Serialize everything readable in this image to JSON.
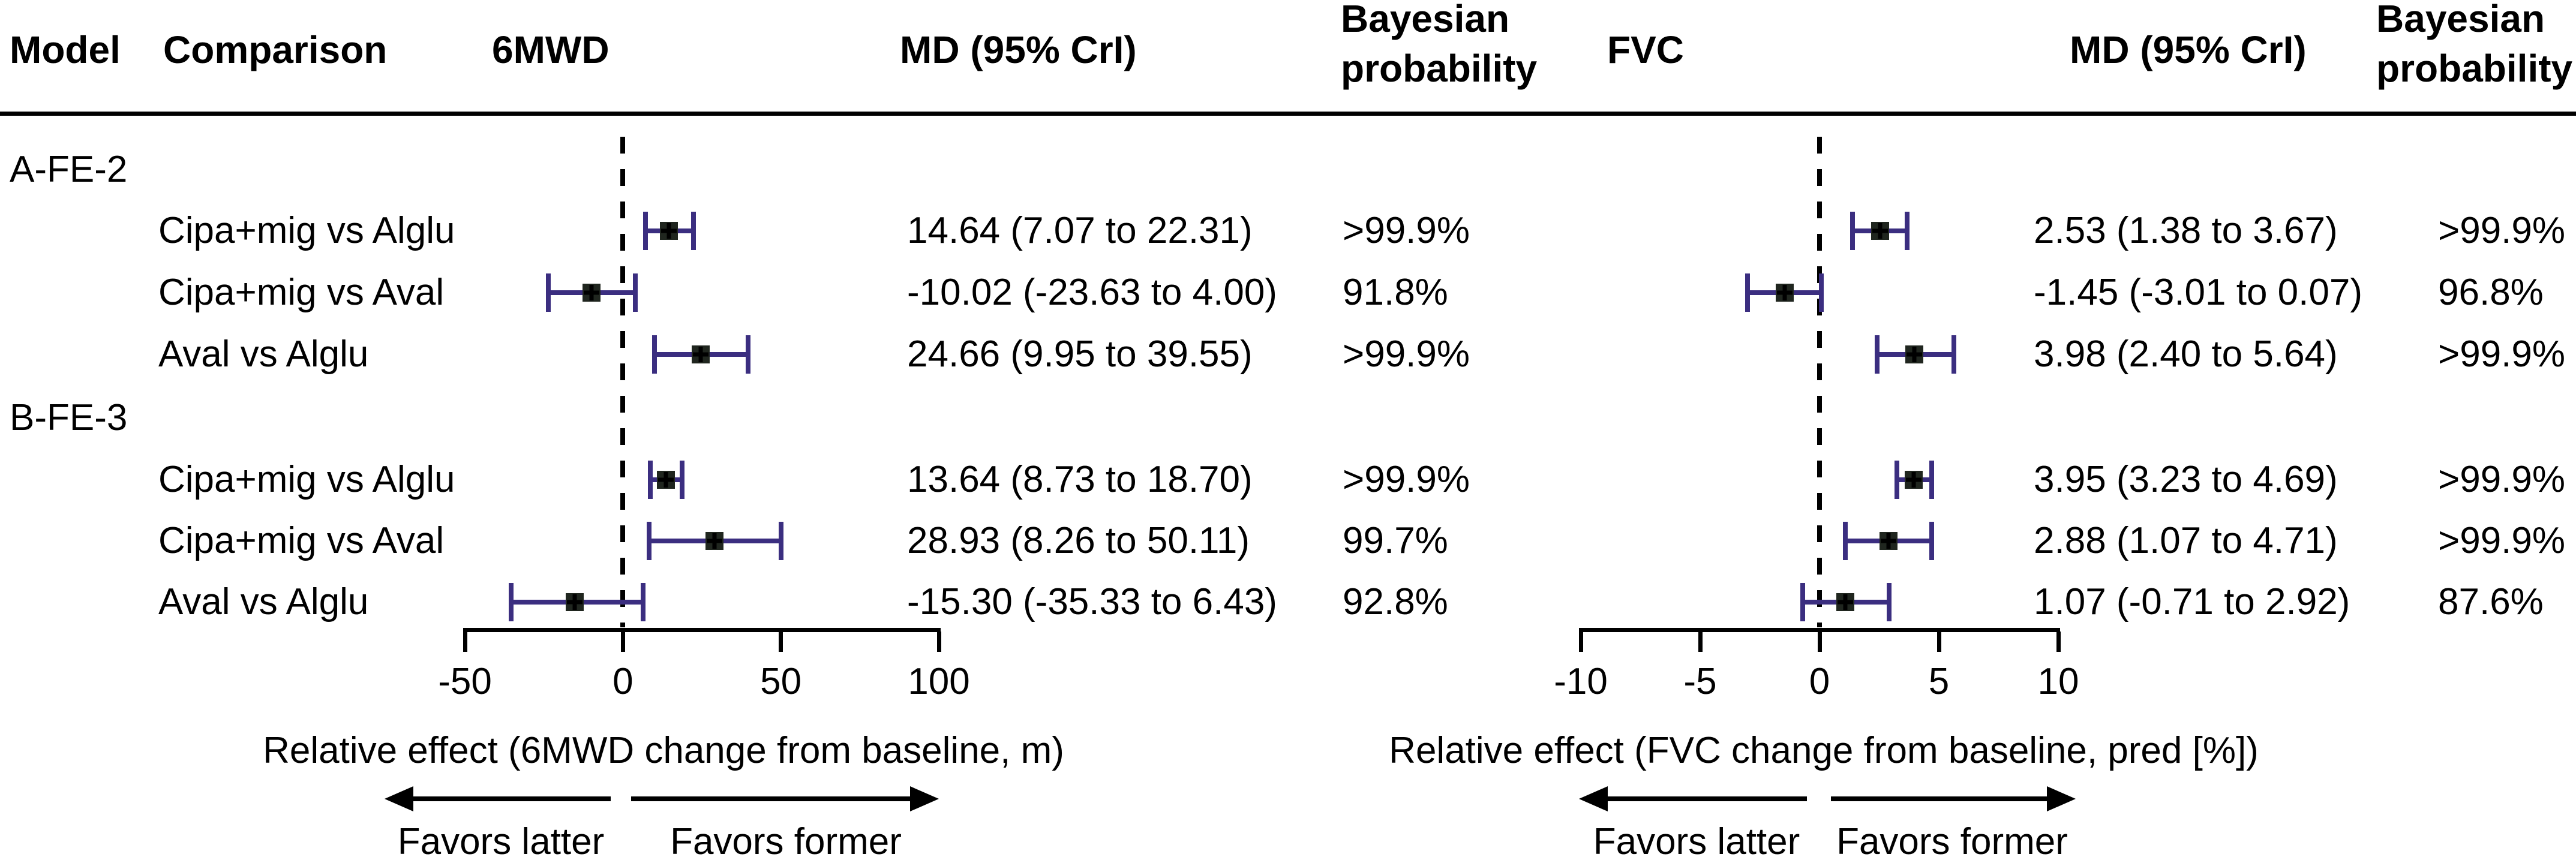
{
  "header": {
    "model": "Model",
    "comparison": "Comparison",
    "outcome_left": "6MWD",
    "md_left": "MD (95% CrI)",
    "bayes_line1": "Bayesian",
    "bayes_line2": "probability",
    "outcome_right": "FVC",
    "md_right": "MD (95% CrI)"
  },
  "chart_data": {
    "type": "forest",
    "panels": [
      {
        "outcome": "6MWD",
        "axis": {
          "min": -50,
          "max": 100,
          "ticks": [
            -50,
            0,
            50,
            100
          ],
          "zero_line": 0,
          "grid": false
        },
        "xlabel": "Relative effect (6MWD change from baseline, m)",
        "favors_left": "Favors latter",
        "favors_right": "Favors former"
      },
      {
        "outcome": "FVC",
        "axis": {
          "min": -10,
          "max": 10,
          "ticks": [
            -10,
            -5,
            0,
            5,
            10
          ],
          "zero_line": 0,
          "grid": false
        },
        "xlabel": "Relative effect (FVC change from baseline, pred [%])",
        "favors_left": "Favors latter",
        "favors_right": "Favors former"
      }
    ],
    "groups": [
      {
        "model": "A-FE-2",
        "rows": [
          {
            "comparison": "Cipa+mig vs Alglu",
            "estimates": [
              {
                "mean": 14.64,
                "lo": 7.07,
                "hi": 22.31,
                "label": "14.64 (7.07 to 22.31)",
                "prob": ">99.9%"
              },
              {
                "mean": 2.53,
                "lo": 1.38,
                "hi": 3.67,
                "label": "2.53 (1.38 to 3.67)",
                "prob": ">99.9%"
              }
            ]
          },
          {
            "comparison": "Cipa+mig vs Aval",
            "estimates": [
              {
                "mean": -10.02,
                "lo": -23.63,
                "hi": 4.0,
                "label": "-10.02 (-23.63 to 4.00)",
                "prob": "91.8%"
              },
              {
                "mean": -1.45,
                "lo": -3.01,
                "hi": 0.07,
                "label": "-1.45 (-3.01 to 0.07)",
                "prob": "96.8%"
              }
            ]
          },
          {
            "comparison": "Aval vs Alglu",
            "estimates": [
              {
                "mean": 24.66,
                "lo": 9.95,
                "hi": 39.55,
                "label": "24.66 (9.95 to 39.55)",
                "prob": ">99.9%"
              },
              {
                "mean": 3.98,
                "lo": 2.4,
                "hi": 5.64,
                "label": "3.98 (2.40 to 5.64)",
                "prob": ">99.9%"
              }
            ]
          }
        ]
      },
      {
        "model": "B-FE-3",
        "rows": [
          {
            "comparison": "Cipa+mig vs Alglu",
            "estimates": [
              {
                "mean": 13.64,
                "lo": 8.73,
                "hi": 18.7,
                "label": "13.64 (8.73 to 18.70)",
                "prob": ">99.9%"
              },
              {
                "mean": 3.95,
                "lo": 3.23,
                "hi": 4.69,
                "label": "3.95 (3.23 to 4.69)",
                "prob": ">99.9%"
              }
            ]
          },
          {
            "comparison": "Cipa+mig vs Aval",
            "estimates": [
              {
                "mean": 28.93,
                "lo": 8.26,
                "hi": 50.11,
                "label": "28.93 (8.26 to 50.11)",
                "prob": "99.7%"
              },
              {
                "mean": 2.88,
                "lo": 1.07,
                "hi": 4.71,
                "label": "2.88 (1.07 to 4.71)",
                "prob": ">99.9%"
              }
            ]
          },
          {
            "comparison": "Aval vs Alglu",
            "estimates": [
              {
                "mean": -15.3,
                "lo": -35.33,
                "hi": 6.43,
                "label": "-15.30 (-35.33 to 6.43)",
                "prob": "92.8%"
              },
              {
                "mean": 1.07,
                "lo": -0.71,
                "hi": 2.92,
                "label": "1.07 (-0.71 to 2.92)",
                "prob": "87.6%"
              }
            ]
          }
        ]
      }
    ]
  },
  "colors": {
    "ci_bar": "#3b2e80",
    "marker_fill": "#20261f",
    "marker_cross": "#000000",
    "axis": "#000000",
    "text": "#000000",
    "background": "#ffffff"
  }
}
